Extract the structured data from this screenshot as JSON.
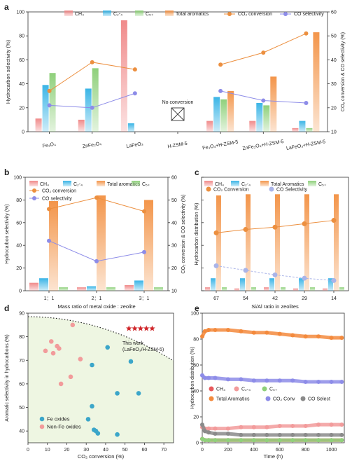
{
  "chart_data": [
    {
      "panel": "a",
      "type": "bar",
      "categories": [
        "Fe₃O₄",
        "ZnFe₂O₄",
        "LaFeO₃",
        "H-ZSM-5",
        "Fe₃O₄+H-ZSM-5",
        "ZnFe₂O₄+H-ZSM-5",
        "LaFeO₃+H-ZSM-5"
      ],
      "ylabel": "Hydrocarbon selectivity (%)",
      "y2label": "CO₂ conversion & CO selectivity (%)",
      "ylim": [
        0,
        100
      ],
      "y2lim": [
        10,
        60
      ],
      "yticks": [
        "0",
        "20",
        "40",
        "60",
        "80",
        "100"
      ],
      "y2ticks": [
        "10",
        "20",
        "30",
        "40",
        "50",
        "60"
      ],
      "annotation": "No conversion",
      "series": [
        {
          "name": "CH₄",
          "kind": "bar",
          "color": "#f08a8a",
          "values": [
            11,
            10,
            93,
            null,
            9,
            9,
            3
          ]
        },
        {
          "name": "C₂-₄",
          "kind": "bar",
          "color": "#3bb5e6",
          "values": [
            39,
            36,
            7,
            null,
            29,
            24,
            9
          ]
        },
        {
          "name": "C₅₊",
          "kind": "bar",
          "color": "#8fd07b",
          "values": [
            49,
            53,
            0,
            null,
            27,
            22,
            3
          ]
        },
        {
          "name": "Total aromatics",
          "kind": "bar",
          "color": "#f3954a",
          "values": [
            0,
            0,
            0,
            null,
            34,
            46,
            83
          ]
        },
        {
          "name": "CO₂ conversion",
          "kind": "line",
          "color": "#ec8f3f",
          "values": [
            27,
            39,
            36,
            null,
            38,
            43,
            51
          ]
        },
        {
          "name": "CO selectivity",
          "kind": "line",
          "color": "#8d8ce8",
          "values": [
            21,
            20,
            26,
            null,
            27,
            23,
            22
          ]
        }
      ]
    },
    {
      "panel": "b",
      "type": "bar",
      "categories": [
        "1：1",
        "2：1",
        "3：1"
      ],
      "xlabel": "Mass ratio of metal oxide : zeolite",
      "ylabel": "Hydrocarbon selectivity (%)",
      "y2label": "CO₂ conversion & CO selectivity (%)",
      "ylim": [
        0,
        100
      ],
      "y2lim": [
        10,
        60
      ],
      "yticks": [
        "0",
        "20",
        "40",
        "60",
        "80",
        "100"
      ],
      "y2ticks": [
        "10",
        "20",
        "30",
        "40",
        "50",
        "60"
      ],
      "series": [
        {
          "name": "CH₄",
          "kind": "bar",
          "color": "#f08a8a",
          "values": [
            7,
            3,
            5
          ]
        },
        {
          "name": "C₂-₄",
          "kind": "bar",
          "color": "#3bb5e6",
          "values": [
            11,
            4,
            9
          ]
        },
        {
          "name": "Total aromatics",
          "kind": "bar",
          "color": "#f3954a",
          "values": [
            79,
            84,
            80
          ]
        },
        {
          "name": "C₅₊",
          "kind": "bar",
          "color": "#8fd07b",
          "values": [
            3,
            3,
            3
          ]
        },
        {
          "name": "CO₂ conversion",
          "kind": "line",
          "color": "#ec8f3f",
          "values": [
            46,
            51,
            45
          ]
        },
        {
          "name": "CO selectivity",
          "kind": "line",
          "color": "#8d8ce8",
          "values": [
            32,
            23,
            27
          ]
        }
      ]
    },
    {
      "panel": "c",
      "type": "bar",
      "categories": [
        "67",
        "54",
        "42",
        "29",
        "14"
      ],
      "xlabel": "Si/Al ratio in zeolites",
      "ylabel": "Hydrocarbon distribution (%)",
      "ylim": [
        0,
        100
      ],
      "yticks": [
        "0",
        "20",
        "40",
        "60",
        "80",
        "100"
      ],
      "series": [
        {
          "name": "CH₄",
          "kind": "bar",
          "color": "#f08a8a",
          "values": [
            3,
            2,
            3,
            2,
            2
          ]
        },
        {
          "name": "C₂-₄",
          "kind": "bar",
          "color": "#3bb5e6",
          "values": [
            11,
            11,
            11,
            11,
            11
          ]
        },
        {
          "name": "Total Aromatics",
          "kind": "bar",
          "color": "#f3954a",
          "values": [
            84,
            85,
            85,
            85,
            85
          ]
        },
        {
          "name": "C₅₊",
          "kind": "bar",
          "color": "#8fd07b",
          "values": [
            3,
            3,
            3,
            3,
            3
          ]
        },
        {
          "name": "CO₂ Conversion",
          "kind": "line",
          "color": "#ec8f3f",
          "values": [
            51,
            54,
            56,
            59,
            62
          ]
        },
        {
          "name": "CO Selectivity",
          "kind": "line",
          "color": "#aab4e8",
          "values": [
            22,
            18,
            14,
            11,
            9
          ]
        }
      ]
    },
    {
      "panel": "d",
      "type": "scatter",
      "xlabel": "CO₂ conversion (%)",
      "ylabel": "Aromatic selectivity in hydrocarbons (%)",
      "xlim": [
        0,
        75
      ],
      "ylim": [
        35,
        90
      ],
      "xticks": [
        "0",
        "10",
        "20",
        "30",
        "40",
        "50",
        "60",
        "70"
      ],
      "yticks": [
        "40",
        "50",
        "60",
        "70",
        "80",
        "90"
      ],
      "annotation": "This work\n(LaFeO₃/H-ZSM-5)",
      "legend": [
        "Fe oxides",
        "Non-Fe oxides"
      ],
      "series": [
        {
          "name": "Fe oxides",
          "color": "#3ba6c9",
          "points": [
            [
              41,
              75.5
            ],
            [
              53,
              69.5
            ],
            [
              33,
              68
            ],
            [
              46,
              56
            ],
            [
              57,
              56
            ],
            [
              33,
              50.5
            ],
            [
              31,
              45
            ],
            [
              34,
              40.5
            ],
            [
              35,
              40
            ],
            [
              36,
              39
            ],
            [
              46,
              38.5
            ]
          ]
        },
        {
          "name": "Non-Fe oxides",
          "color": "#f29b9b",
          "points": [
            [
              23,
              85
            ],
            [
              12,
              78
            ],
            [
              15,
              76
            ],
            [
              16,
              75
            ],
            [
              9,
              74
            ],
            [
              13,
              73
            ],
            [
              27,
              70.5
            ],
            [
              22,
              63
            ],
            [
              17,
              60
            ]
          ]
        },
        {
          "name": "This work",
          "color": "#d0262a",
          "points": [
            [
              52,
              83.5
            ],
            [
              55,
              83.5
            ],
            [
              58,
              83.5
            ],
            [
              61,
              83.5
            ],
            [
              64,
              83.5
            ]
          ]
        }
      ]
    },
    {
      "panel": "e",
      "type": "scatter",
      "xlabel": "Time (h)",
      "ylabel": "Hydrocarbon distribution (%)",
      "xlim": [
        0,
        1100
      ],
      "ylim": [
        0,
        100
      ],
      "xticks": [
        "0",
        "200",
        "400",
        "600",
        "800",
        "1000"
      ],
      "yticks": [
        "0",
        "20",
        "40",
        "60",
        "80",
        "100"
      ],
      "series": [
        {
          "name": "CH₄",
          "color": "#e8595c",
          "x": [
            0,
            20,
            50,
            100,
            200,
            300,
            400,
            500,
            600,
            700,
            800,
            900,
            1000,
            1080
          ],
          "values": [
            3,
            2,
            2,
            2,
            2,
            2,
            2,
            2,
            2,
            2,
            2,
            2,
            2,
            2
          ]
        },
        {
          "name": "C₂-₄",
          "color": "#f29b9b",
          "x": [
            0,
            20,
            50,
            100,
            200,
            300,
            400,
            500,
            600,
            700,
            800,
            900,
            1000,
            1080
          ],
          "values": [
            12,
            11,
            11,
            11,
            11,
            12,
            12,
            12,
            13,
            13,
            13,
            14,
            14,
            14
          ]
        },
        {
          "name": "C₅₊",
          "color": "#8fd07b",
          "x": [
            0,
            20,
            50,
            100,
            200,
            300,
            400,
            500,
            600,
            700,
            800,
            900,
            1000,
            1080
          ],
          "values": [
            3,
            2,
            2,
            2,
            2,
            2,
            2,
            2,
            2,
            2,
            2,
            2,
            2,
            2
          ]
        },
        {
          "name": "Total Aromatics",
          "color": "#f38a3d",
          "x": [
            0,
            20,
            50,
            100,
            200,
            300,
            400,
            500,
            600,
            700,
            800,
            900,
            1000,
            1080
          ],
          "values": [
            82,
            86,
            87,
            87,
            87,
            86,
            85,
            85,
            84,
            83,
            82,
            82,
            81,
            81
          ]
        },
        {
          "name": "CO₂ Conv",
          "color": "#8d8ce8",
          "x": [
            0,
            20,
            50,
            100,
            200,
            300,
            400,
            500,
            600,
            700,
            800,
            900,
            1000,
            1080
          ],
          "values": [
            52,
            50,
            50,
            50,
            49,
            49,
            48,
            48,
            48,
            48,
            47,
            47,
            47,
            47
          ]
        },
        {
          "name": "CO Select",
          "color": "#8a8a8a",
          "x": [
            0,
            20,
            50,
            100,
            200,
            300,
            400,
            500,
            600,
            700,
            800,
            900,
            1000,
            1080
          ],
          "values": [
            14,
            9,
            8,
            7,
            7,
            6,
            6,
            6,
            6,
            6,
            6,
            6,
            6,
            6
          ]
        }
      ]
    }
  ]
}
